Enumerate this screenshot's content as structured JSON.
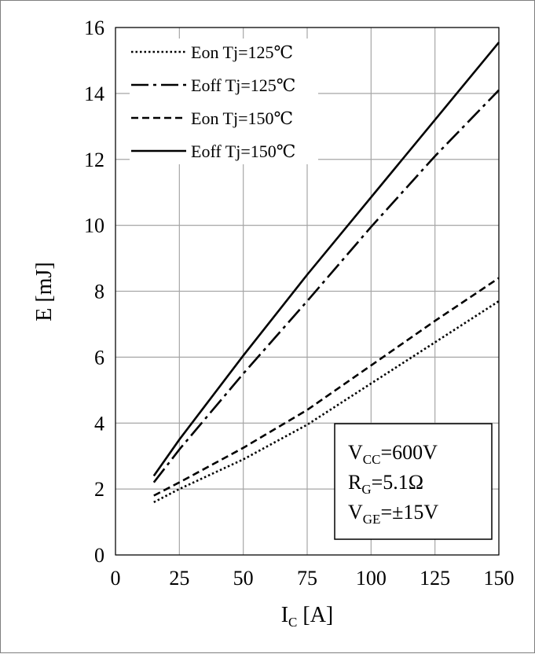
{
  "chart_data": {
    "type": "line",
    "xlabel": {
      "main": "I",
      "sub": "C",
      "unit": " [A]"
    },
    "ylabel": "E [mJ]",
    "xlim": [
      0,
      150
    ],
    "ylim": [
      0,
      16
    ],
    "x_ticks": [
      "0",
      "25",
      "50",
      "75",
      "100",
      "125",
      "150"
    ],
    "y_ticks": [
      "0",
      "2",
      "4",
      "6",
      "8",
      "10",
      "12",
      "14",
      "16"
    ],
    "grid": true,
    "legend_position": "top-left",
    "series": [
      {
        "name": "Eon Tj=125℃",
        "style": "dotted",
        "x": [
          15,
          25,
          50,
          75,
          100,
          125,
          150
        ],
        "y": [
          1.6,
          2.0,
          2.9,
          3.95,
          5.2,
          6.45,
          7.7
        ]
      },
      {
        "name": "Eoff Tj=125℃",
        "style": "dashdot",
        "x": [
          15,
          25,
          50,
          75,
          100,
          125,
          150
        ],
        "y": [
          2.2,
          3.2,
          5.5,
          7.7,
          9.95,
          12.1,
          14.1
        ]
      },
      {
        "name": "Eon Tj=150℃",
        "style": "dashed",
        "x": [
          15,
          25,
          50,
          75,
          100,
          125,
          150
        ],
        "y": [
          1.8,
          2.2,
          3.25,
          4.4,
          5.75,
          7.1,
          8.4
        ]
      },
      {
        "name": "Eoff Tj=150℃",
        "style": "solid",
        "x": [
          15,
          25,
          50,
          75,
          100,
          125,
          150
        ],
        "y": [
          2.4,
          3.5,
          6.05,
          8.5,
          10.85,
          13.2,
          15.55
        ]
      }
    ],
    "annotation": {
      "vcc": {
        "main": "V",
        "sub": "CC",
        "rest": "=600V"
      },
      "rg": {
        "main": "R",
        "sub": "G",
        "rest": "=5.1Ω"
      },
      "vge": {
        "main": "V",
        "sub": "GE",
        "rest": "=±15V"
      }
    }
  }
}
